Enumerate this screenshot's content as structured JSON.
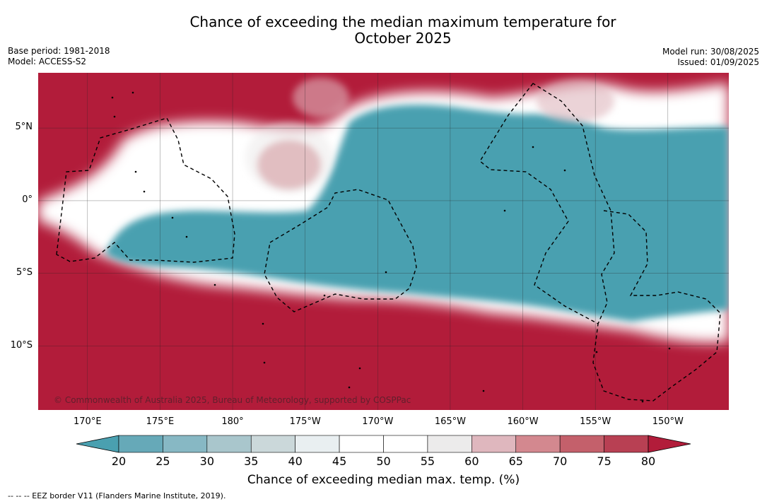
{
  "title_line1": "Chance of exceeding the median maximum temperature for",
  "title_line2": "October 2025",
  "meta_left": [
    "Base period: 1981-2018",
    "Model: ACCESS-S2"
  ],
  "meta_right": [
    "Model run: 30/08/2025",
    "Issued: 01/09/2025"
  ],
  "lat_labels": [
    {
      "text": "5°N",
      "lat": 5
    },
    {
      "text": "0°",
      "lat": 0
    },
    {
      "text": "5°S",
      "lat": -5
    },
    {
      "text": "10°S",
      "lat": -10
    }
  ],
  "lon_labels": [
    {
      "text": "170°E",
      "lon": 170
    },
    {
      "text": "175°E",
      "lon": 175
    },
    {
      "text": "180°",
      "lon": 180
    },
    {
      "text": "175°W",
      "lon": 185
    },
    {
      "text": "170°W",
      "lon": 190
    },
    {
      "text": "165°W",
      "lon": 195
    },
    {
      "text": "160°W",
      "lon": 200
    },
    {
      "text": "155°W",
      "lon": 205
    },
    {
      "text": "150°W",
      "lon": 210
    }
  ],
  "extent": {
    "lon": [
      166.6,
      214.2
    ],
    "lat": [
      -14.4,
      8.8
    ]
  },
  "copyright": "© Commonwealth of Australia 2025, Bureau of Meteorology, supported by COSPPac",
  "colorbar": {
    "ticks": [
      "20",
      "25",
      "30",
      "35",
      "40",
      "45",
      "50",
      "55",
      "60",
      "65",
      "70",
      "75",
      "80"
    ],
    "under_color": "#4aa0b0",
    "over_color": "#b21c3a",
    "colors": [
      "#66a9b8",
      "#87b8c4",
      "#a9c6cc",
      "#cbd8da",
      "#e9eff1",
      "#ffffff",
      "#ffffff",
      "#ecebeb",
      "#dfb7be",
      "#d3888f",
      "#c4606b",
      "#b84053"
    ],
    "label": "Chance of exceeding median max. temp. (%)"
  },
  "map_colors": {
    "hot": "#b21c3a",
    "cool": "#4aa0b0",
    "neutral": "#ffffff"
  },
  "footnote": "--  --  -- EEZ border V11 (Flanders Marine Institute, 2019)."
}
